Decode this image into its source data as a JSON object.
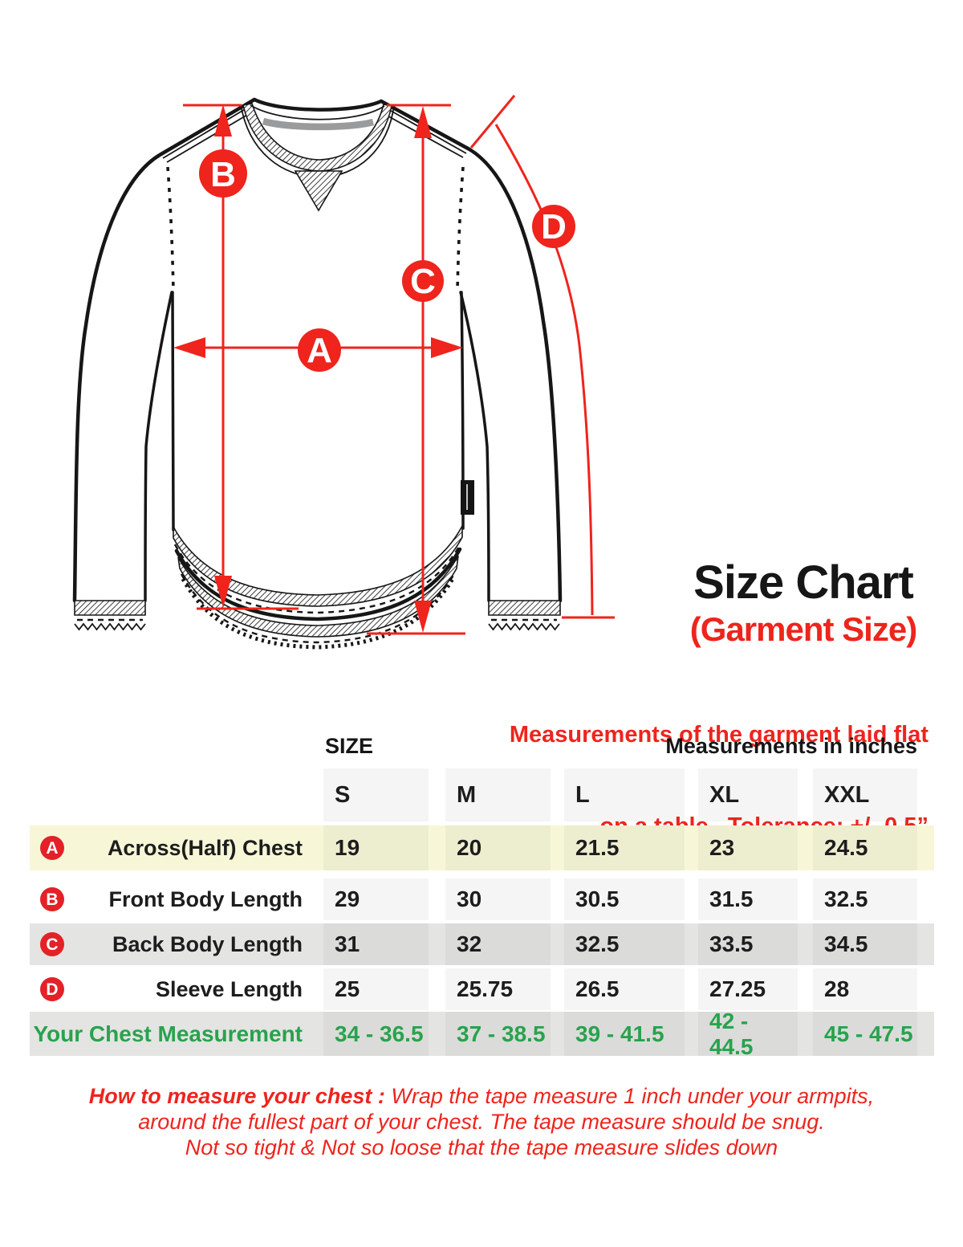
{
  "colors": {
    "ink": "#161616",
    "red": "#ee241d",
    "badge_red": "#e32127",
    "green": "#28a34c",
    "yellow_row": "#f7f7d8",
    "gray_row": "#e4e4e3",
    "gray_bar": "#9a9b9d"
  },
  "diagram": {
    "markers": [
      "A",
      "B",
      "C",
      "D"
    ]
  },
  "header": {
    "title": "Size Chart",
    "subtitle": "(Garment Size)",
    "note_line1": "Measurements of the garment laid flat",
    "note_line2": "on a table.  Tolerance: +/- 0.5”"
  },
  "table": {
    "size_header": "SIZE",
    "measurements_header": "Measurements in inches",
    "columns": [
      "S",
      "M",
      "L",
      "XL",
      "XXL"
    ],
    "rows": [
      {
        "badge": "A",
        "label": "Across(Half) Chest",
        "values": [
          "19",
          "20",
          "21.5",
          "23",
          "24.5"
        ],
        "highlight": "yellow",
        "green": false
      },
      {
        "badge": "B",
        "label": "Front Body Length",
        "values": [
          "29",
          "30",
          "30.5",
          "31.5",
          "32.5"
        ],
        "highlight": "",
        "green": false
      },
      {
        "badge": "C",
        "label": "Back Body Length",
        "values": [
          "31",
          "32",
          "32.5",
          "33.5",
          "34.5"
        ],
        "highlight": "gray",
        "green": false
      },
      {
        "badge": "D",
        "label": "Sleeve Length",
        "values": [
          "25",
          "25.75",
          "26.5",
          "27.25",
          "28"
        ],
        "highlight": "",
        "green": false
      },
      {
        "badge": "",
        "label": "Your Chest Measurement",
        "values": [
          "34 - 36.5",
          "37 - 38.5",
          "39 - 41.5",
          "42 - 44.5",
          "45 - 47.5"
        ],
        "highlight": "gray",
        "green": true
      }
    ]
  },
  "footer": {
    "lead": "How to measure your chest : ",
    "line1": "Wrap the tape measure 1 inch under your armpits,",
    "line2": "around the fullest part of your chest. The tape measure should be snug.",
    "line3": "Not so tight & Not so loose that the tape measure slides down"
  }
}
